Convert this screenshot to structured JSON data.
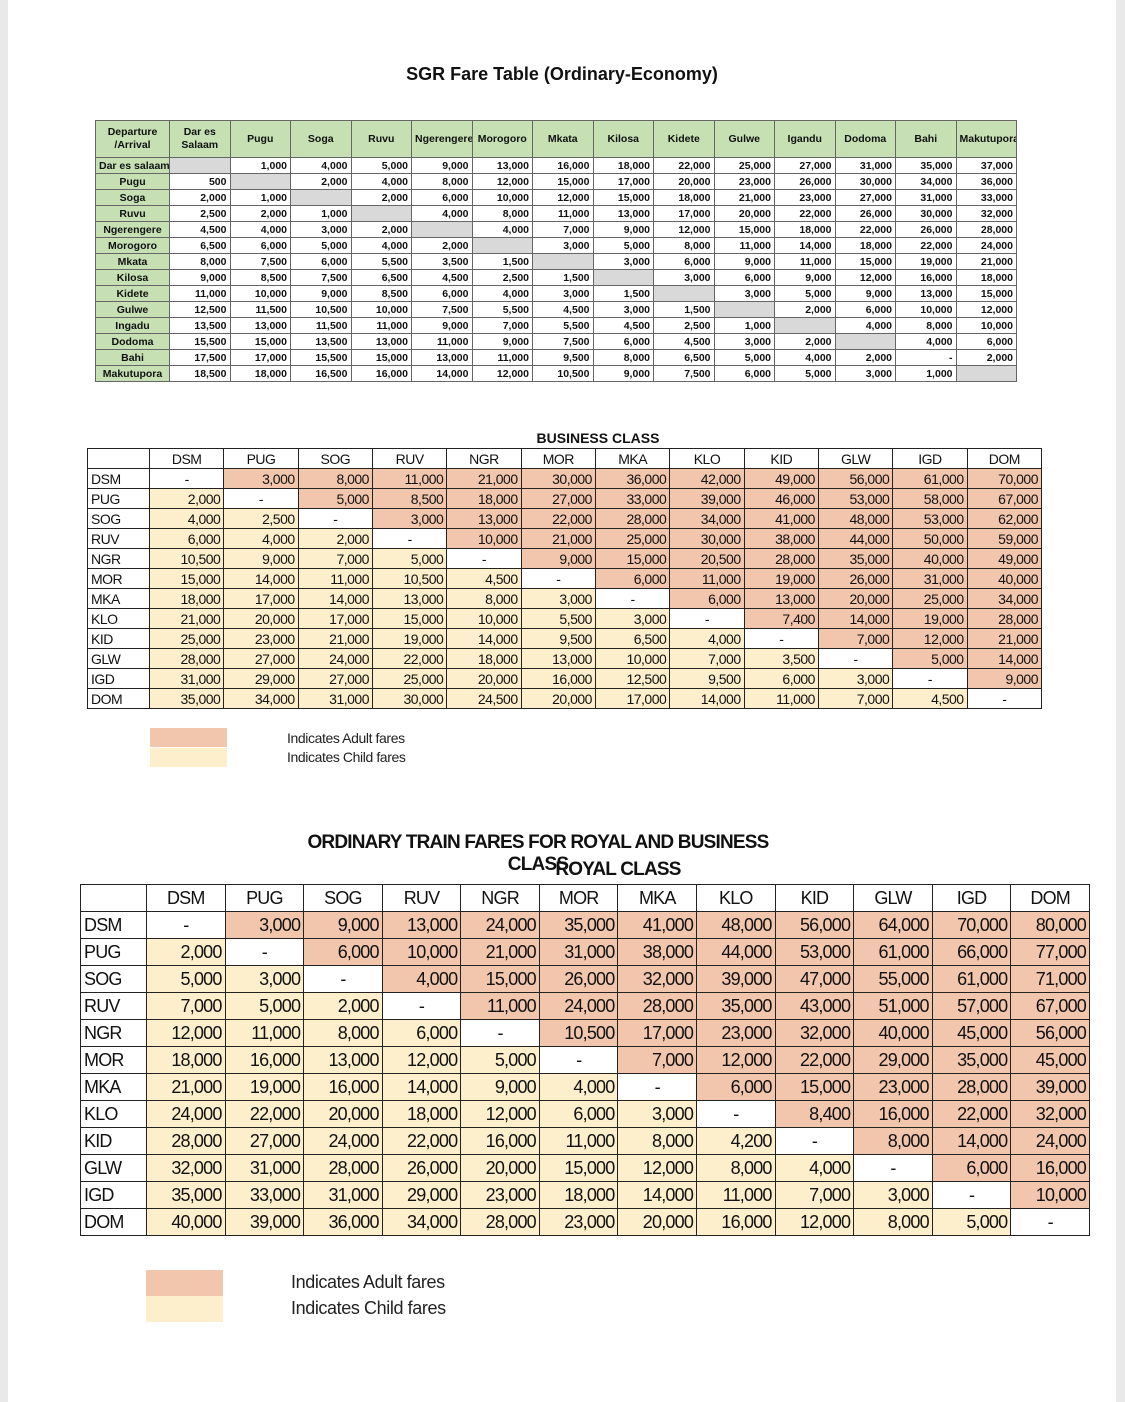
{
  "economy": {
    "title": "SGR Fare Table (Ordinary-Economy)",
    "corner": "Departure /Arrival",
    "header": [
      "Dar es Salaam",
      "Pugu",
      "Soga",
      "Ruvu",
      "Ngerengere",
      "Morogoro",
      "Mkata",
      "Kilosa",
      "Kidete",
      "Gulwe",
      "Igandu",
      "Dodoma",
      "Bahi",
      "Makutupora"
    ],
    "rows": [
      {
        "label": "Dar es salaam",
        "cells": [
          null,
          "1,000",
          "4,000",
          "5,000",
          "9,000",
          "13,000",
          "16,000",
          "18,000",
          "22,000",
          "25,000",
          "27,000",
          "31,000",
          "35,000",
          "37,000"
        ]
      },
      {
        "label": "Pugu",
        "cells": [
          "500",
          null,
          "2,000",
          "4,000",
          "8,000",
          "12,000",
          "15,000",
          "17,000",
          "20,000",
          "23,000",
          "26,000",
          "30,000",
          "34,000",
          "36,000"
        ]
      },
      {
        "label": "Soga",
        "cells": [
          "2,000",
          "1,000",
          null,
          "2,000",
          "6,000",
          "10,000",
          "12,000",
          "15,000",
          "18,000",
          "21,000",
          "23,000",
          "27,000",
          "31,000",
          "33,000"
        ]
      },
      {
        "label": "Ruvu",
        "cells": [
          "2,500",
          "2,000",
          "1,000",
          null,
          "4,000",
          "8,000",
          "11,000",
          "13,000",
          "17,000",
          "20,000",
          "22,000",
          "26,000",
          "30,000",
          "32,000"
        ]
      },
      {
        "label": "Ngerengere",
        "cells": [
          "4,500",
          "4,000",
          "3,000",
          "2,000",
          null,
          "4,000",
          "7,000",
          "9,000",
          "12,000",
          "15,000",
          "18,000",
          "22,000",
          "26,000",
          "28,000"
        ]
      },
      {
        "label": "Morogoro",
        "cells": [
          "6,500",
          "6,000",
          "5,000",
          "4,000",
          "2,000",
          null,
          "3,000",
          "5,000",
          "8,000",
          "11,000",
          "14,000",
          "18,000",
          "22,000",
          "24,000"
        ]
      },
      {
        "label": "Mkata",
        "cells": [
          "8,000",
          "7,500",
          "6,000",
          "5,500",
          "3,500",
          "1,500",
          null,
          "3,000",
          "6,000",
          "9,000",
          "11,000",
          "15,000",
          "19,000",
          "21,000"
        ]
      },
      {
        "label": "Kilosa",
        "cells": [
          "9,000",
          "8,500",
          "7,500",
          "6,500",
          "4,500",
          "2,500",
          "1,500",
          null,
          "3,000",
          "6,000",
          "9,000",
          "12,000",
          "16,000",
          "18,000"
        ]
      },
      {
        "label": "Kidete",
        "cells": [
          "11,000",
          "10,000",
          "9,000",
          "8,500",
          "6,000",
          "4,000",
          "3,000",
          "1,500",
          null,
          "3,000",
          "5,000",
          "9,000",
          "13,000",
          "15,000"
        ]
      },
      {
        "label": "Gulwe",
        "cells": [
          "12,500",
          "11,500",
          "10,500",
          "10,000",
          "7,500",
          "5,500",
          "4,500",
          "3,000",
          "1,500",
          null,
          "2,000",
          "6,000",
          "10,000",
          "12,000"
        ]
      },
      {
        "label": "Ingadu",
        "cells": [
          "13,500",
          "13,000",
          "11,500",
          "11,000",
          "9,000",
          "7,000",
          "5,500",
          "4,500",
          "2,500",
          "1,000",
          null,
          "4,000",
          "8,000",
          "10,000"
        ]
      },
      {
        "label": "Dodoma",
        "cells": [
          "15,500",
          "15,000",
          "13,500",
          "13,000",
          "11,000",
          "9,000",
          "7,500",
          "6,000",
          "4,500",
          "3,000",
          "2,000",
          null,
          "4,000",
          "6,000"
        ]
      },
      {
        "label": "Bahi",
        "cells": [
          "17,500",
          "17,000",
          "15,500",
          "15,000",
          "13,000",
          "11,000",
          "9,500",
          "8,000",
          "6,500",
          "5,000",
          "4,000",
          "2,000",
          "-",
          "2,000"
        ]
      },
      {
        "label": "Makutupora",
        "cells": [
          "18,500",
          "18,000",
          "16,500",
          "16,000",
          "14,000",
          "12,000",
          "10,500",
          "9,000",
          "7,500",
          "6,000",
          "5,000",
          "3,000",
          "1,000",
          null
        ]
      }
    ]
  },
  "business": {
    "title": "BUSINESS CLASS",
    "header": [
      "DSM",
      "PUG",
      "SOG",
      "RUV",
      "NGR",
      "MOR",
      "MKA",
      "KLO",
      "KID",
      "GLW",
      "IGD",
      "DOM"
    ],
    "rows": [
      {
        "label": "DSM",
        "cells": [
          "-",
          "3,000",
          "8,000",
          "11,000",
          "21,000",
          "30,000",
          "36,000",
          "42,000",
          "49,000",
          "56,000",
          "61,000",
          "70,000"
        ]
      },
      {
        "label": "PUG",
        "cells": [
          "2,000",
          "-",
          "5,000",
          "8,500",
          "18,000",
          "27,000",
          "33,000",
          "39,000",
          "46,000",
          "53,000",
          "58,000",
          "67,000"
        ]
      },
      {
        "label": "SOG",
        "cells": [
          "4,000",
          "2,500",
          "-",
          "3,000",
          "13,000",
          "22,000",
          "28,000",
          "34,000",
          "41,000",
          "48,000",
          "53,000",
          "62,000"
        ]
      },
      {
        "label": "RUV",
        "cells": [
          "6,000",
          "4,000",
          "2,000",
          "-",
          "10,000",
          "21,000",
          "25,000",
          "30,000",
          "38,000",
          "44,000",
          "50,000",
          "59,000"
        ]
      },
      {
        "label": "NGR",
        "cells": [
          "10,500",
          "9,000",
          "7,000",
          "5,000",
          "-",
          "9,000",
          "15,000",
          "20,500",
          "28,000",
          "35,000",
          "40,000",
          "49,000"
        ]
      },
      {
        "label": "MOR",
        "cells": [
          "15,000",
          "14,000",
          "11,000",
          "10,500",
          "4,500",
          "-",
          "6,000",
          "11,000",
          "19,000",
          "26,000",
          "31,000",
          "40,000"
        ]
      },
      {
        "label": "MKA",
        "cells": [
          "18,000",
          "17,000",
          "14,000",
          "13,000",
          "8,000",
          "3,000",
          "-",
          "6,000",
          "13,000",
          "20,000",
          "25,000",
          "34,000"
        ]
      },
      {
        "label": "KLO",
        "cells": [
          "21,000",
          "20,000",
          "17,000",
          "15,000",
          "10,000",
          "5,500",
          "3,000",
          "-",
          "7,400",
          "14,000",
          "19,000",
          "28,000"
        ]
      },
      {
        "label": "KID",
        "cells": [
          "25,000",
          "23,000",
          "21,000",
          "19,000",
          "14,000",
          "9,500",
          "6,500",
          "4,000",
          "-",
          "7,000",
          "12,000",
          "21,000"
        ]
      },
      {
        "label": "GLW",
        "cells": [
          "28,000",
          "27,000",
          "24,000",
          "22,000",
          "18,000",
          "13,000",
          "10,000",
          "7,000",
          "3,500",
          "-",
          "5,000",
          "14,000"
        ]
      },
      {
        "label": "IGD",
        "cells": [
          "31,000",
          "29,000",
          "27,000",
          "25,000",
          "20,000",
          "16,000",
          "12,500",
          "9,500",
          "6,000",
          "3,000",
          "-",
          "9,000"
        ]
      },
      {
        "label": "DOM",
        "cells": [
          "35,000",
          "34,000",
          "31,000",
          "30,000",
          "24,500",
          "20,000",
          "17,000",
          "14,000",
          "11,000",
          "7,000",
          "4,500",
          "-"
        ]
      }
    ],
    "legend": [
      "Indicates Adult fares",
      "Indicates Child fares"
    ]
  },
  "royal": {
    "heading": "ORDINARY TRAIN FARES FOR ROYAL AND BUSINESS CLASS",
    "title": "ROYAL CLASS",
    "header": [
      "DSM",
      "PUG",
      "SOG",
      "RUV",
      "NGR",
      "MOR",
      "MKA",
      "KLO",
      "KID",
      "GLW",
      "IGD",
      "DOM"
    ],
    "rows": [
      {
        "label": "DSM",
        "cells": [
          "-",
          "3,000",
          "9,000",
          "13,000",
          "24,000",
          "35,000",
          "41,000",
          "48,000",
          "56,000",
          "64,000",
          "70,000",
          "80,000"
        ]
      },
      {
        "label": "PUG",
        "cells": [
          "2,000",
          "-",
          "6,000",
          "10,000",
          "21,000",
          "31,000",
          "38,000",
          "44,000",
          "53,000",
          "61,000",
          "66,000",
          "77,000"
        ]
      },
      {
        "label": "SOG",
        "cells": [
          "5,000",
          "3,000",
          "-",
          "4,000",
          "15,000",
          "26,000",
          "32,000",
          "39,000",
          "47,000",
          "55,000",
          "61,000",
          "71,000"
        ]
      },
      {
        "label": "RUV",
        "cells": [
          "7,000",
          "5,000",
          "2,000",
          "-",
          "11,000",
          "24,000",
          "28,000",
          "35,000",
          "43,000",
          "51,000",
          "57,000",
          "67,000"
        ]
      },
      {
        "label": "NGR",
        "cells": [
          "12,000",
          "11,000",
          "8,000",
          "6,000",
          "-",
          "10,500",
          "17,000",
          "23,000",
          "32,000",
          "40,000",
          "45,000",
          "56,000"
        ]
      },
      {
        "label": "MOR",
        "cells": [
          "18,000",
          "16,000",
          "13,000",
          "12,000",
          "5,000",
          "-",
          "7,000",
          "12,000",
          "22,000",
          "29,000",
          "35,000",
          "45,000"
        ]
      },
      {
        "label": "MKA",
        "cells": [
          "21,000",
          "19,000",
          "16,000",
          "14,000",
          "9,000",
          "4,000",
          "-",
          "6,000",
          "15,000",
          "23,000",
          "28,000",
          "39,000"
        ]
      },
      {
        "label": "KLO",
        "cells": [
          "24,000",
          "22,000",
          "20,000",
          "18,000",
          "12,000",
          "6,000",
          "3,000",
          "-",
          "8,400",
          "16,000",
          "22,000",
          "32,000"
        ]
      },
      {
        "label": "KID",
        "cells": [
          "28,000",
          "27,000",
          "24,000",
          "22,000",
          "16,000",
          "11,000",
          "8,000",
          "4,200",
          "-",
          "8,000",
          "14,000",
          "24,000"
        ]
      },
      {
        "label": "GLW",
        "cells": [
          "32,000",
          "31,000",
          "28,000",
          "26,000",
          "20,000",
          "15,000",
          "12,000",
          "8,000",
          "4,000",
          "-",
          "6,000",
          "16,000"
        ]
      },
      {
        "label": "IGD",
        "cells": [
          "35,000",
          "33,000",
          "31,000",
          "29,000",
          "23,000",
          "18,000",
          "14,000",
          "11,000",
          "7,000",
          "3,000",
          "-",
          "10,000"
        ]
      },
      {
        "label": "DOM",
        "cells": [
          "40,000",
          "39,000",
          "36,000",
          "34,000",
          "28,000",
          "23,000",
          "20,000",
          "16,000",
          "12,000",
          "8,000",
          "5,000",
          "-"
        ]
      }
    ],
    "legend": [
      "Indicates Adult fares",
      "Indicates Child fares"
    ]
  }
}
